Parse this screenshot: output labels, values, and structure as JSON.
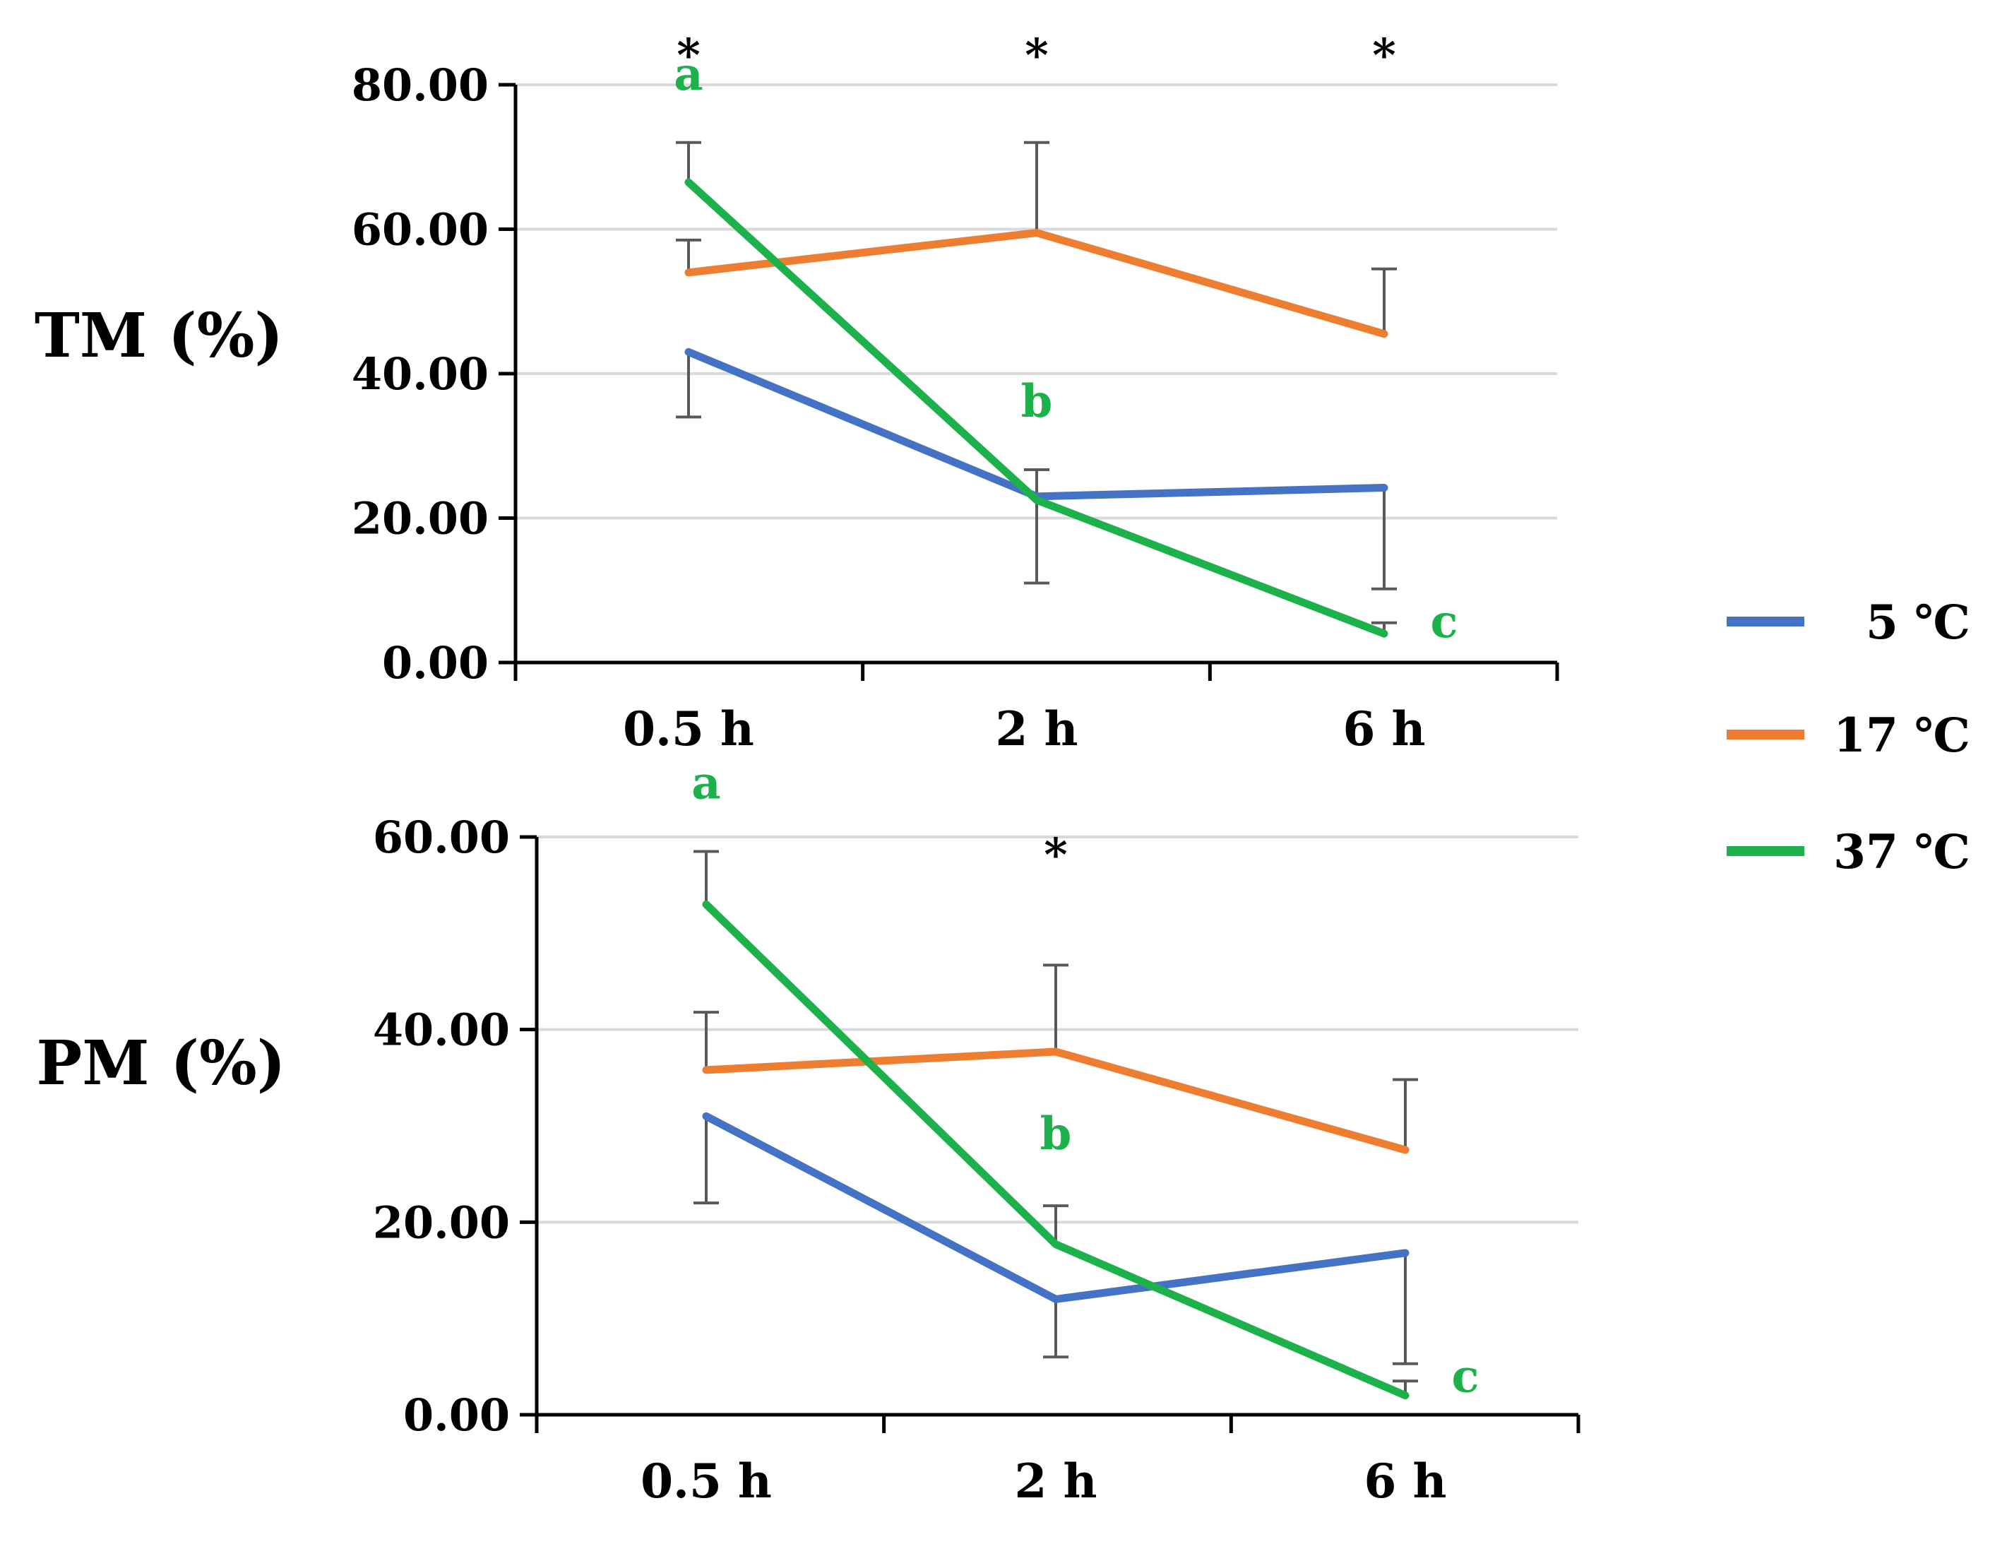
{
  "colors": {
    "5C": "#4472C4",
    "17C": "#ED7D31",
    "37C": "#1DB14B",
    "grid": "#D9D9D9",
    "axis": "#000000",
    "errorbar": "#595959"
  },
  "legend": {
    "items": [
      {
        "key": "5C",
        "label": "5 ℃"
      },
      {
        "key": "17C",
        "label": "17 ℃"
      },
      {
        "key": "37C",
        "label": "37 ℃"
      }
    ]
  },
  "chart_data": [
    {
      "type": "line",
      "ylabel": "TM (%)",
      "categories": [
        "0.5 h",
        "2 h",
        "6 h"
      ],
      "ylim": [
        0,
        80
      ],
      "yticks": [
        "0.00",
        "20.00",
        "40.00",
        "60.00",
        "80.00"
      ],
      "grid": true,
      "series": [
        {
          "name": "5 ℃",
          "key": "5C",
          "values": [
            43,
            23,
            24.2
          ],
          "error": [
            9,
            12,
            14
          ],
          "error_dir": "down"
        },
        {
          "name": "17 ℃",
          "key": "17C",
          "values": [
            54,
            59.5,
            45.5
          ],
          "error": [
            4.5,
            12.5,
            9
          ],
          "error_dir": "up"
        },
        {
          "name": "37 ℃",
          "key": "37C",
          "values": [
            66.5,
            22.5,
            4
          ],
          "error": [
            5.5,
            4.2,
            1.5
          ],
          "error_dir": "up"
        }
      ],
      "significance": [
        "*",
        "*",
        "*"
      ],
      "letters": [
        "a",
        "b",
        "c"
      ]
    },
    {
      "type": "line",
      "ylabel": "PM (%)",
      "categories": [
        "0.5 h",
        "2 h",
        "6 h"
      ],
      "ylim": [
        0,
        60
      ],
      "yticks": [
        "0.00",
        "20.00",
        "40.00",
        "60.00"
      ],
      "grid": true,
      "series": [
        {
          "name": "5 ℃",
          "key": "5C",
          "values": [
            31,
            12,
            16.8
          ],
          "error": [
            9,
            6,
            11.5
          ],
          "error_dir": "down"
        },
        {
          "name": "17 ℃",
          "key": "17C",
          "values": [
            35.8,
            37.7,
            27.5
          ],
          "error": [
            6,
            9,
            7.3
          ],
          "error_dir": "up"
        },
        {
          "name": "37 ℃",
          "key": "37C",
          "values": [
            53,
            17.7,
            2
          ],
          "error": [
            5.5,
            4,
            1.5
          ],
          "error_dir": "up"
        }
      ],
      "significance": [
        "",
        "*",
        ""
      ],
      "letters": [
        "a",
        "b",
        "c"
      ]
    }
  ]
}
